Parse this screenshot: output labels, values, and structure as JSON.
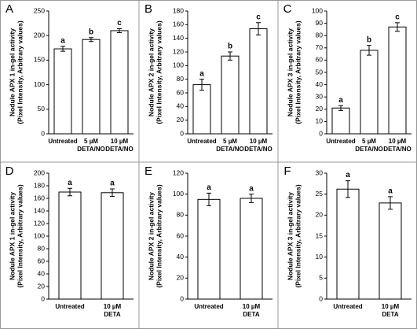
{
  "chart_data": [
    {
      "type": "bar",
      "panel_label": "A",
      "ylabel": [
        "Nodule APX 1 in-gel activity",
        "(Pixel Intensity, Arbitrary values)"
      ],
      "categories": [
        [
          "Untreated"
        ],
        [
          "5 µM",
          "DETA/NO"
        ],
        [
          "10 µM",
          "DETA/NO"
        ]
      ],
      "values": [
        173,
        192,
        210
      ],
      "errors": [
        5,
        4,
        4
      ],
      "annotations": [
        "a",
        "b",
        "c"
      ],
      "ylim": [
        0,
        250
      ],
      "yticks": [
        0,
        50,
        100,
        150,
        200,
        250
      ],
      "color": "#ffffff"
    },
    {
      "type": "bar",
      "panel_label": "B",
      "ylabel": [
        "Nodule APX 2 in-gel activity",
        "(Pixel Intensity, Arbitrary values)"
      ],
      "categories": [
        [
          "Untreated"
        ],
        [
          "5 µM",
          "DETA/NO"
        ],
        [
          "10 µM",
          "DETA/NO"
        ]
      ],
      "values": [
        72,
        114,
        154
      ],
      "errors": [
        8,
        6,
        9
      ],
      "annotations": [
        "a",
        "b",
        "c"
      ],
      "ylim": [
        0,
        180
      ],
      "yticks": [
        0,
        20,
        40,
        60,
        80,
        100,
        120,
        140,
        160,
        180
      ],
      "color": "#ffffff"
    },
    {
      "type": "bar",
      "panel_label": "C",
      "ylabel": [
        "Nodule APX 3 in-gel activity",
        "(Pixel Intensity, Arbitrary values)"
      ],
      "categories": [
        [
          "Untreated"
        ],
        [
          "5 µM",
          "DETA/NO"
        ],
        [
          "10 µM",
          "DETA/NO"
        ]
      ],
      "values": [
        21,
        68,
        87
      ],
      "errors": [
        2,
        4,
        3.5
      ],
      "annotations": [
        "a",
        "b",
        "c"
      ],
      "ylim": [
        0,
        100
      ],
      "yticks": [
        0,
        10,
        20,
        30,
        40,
        50,
        60,
        70,
        80,
        90,
        100
      ],
      "color": "#ffffff"
    },
    {
      "type": "bar",
      "panel_label": "D",
      "ylabel": [
        "Nodule APX 1 in-gel activity",
        "(Pixel Intensity, Arbitrary values)"
      ],
      "categories": [
        [
          "Untreated"
        ],
        [
          "10 µM",
          "DETA"
        ]
      ],
      "values": [
        170,
        169
      ],
      "errors": [
        6,
        6
      ],
      "annotations": [
        "a",
        "a"
      ],
      "ylim": [
        0,
        200
      ],
      "yticks": [
        0,
        20,
        40,
        60,
        80,
        100,
        120,
        140,
        160,
        180,
        200
      ],
      "color": "#ffffff"
    },
    {
      "type": "bar",
      "panel_label": "E",
      "ylabel": [
        "Nodule APX 2 in-gel activity",
        "(Pixel Intensity, Arbitrary values)"
      ],
      "categories": [
        [
          "Untreated"
        ],
        [
          "10 µM",
          "DETA"
        ]
      ],
      "values": [
        95,
        96
      ],
      "errors": [
        6,
        4
      ],
      "annotations": [
        "a",
        "a"
      ],
      "ylim": [
        0,
        120
      ],
      "yticks": [
        0,
        20,
        40,
        60,
        80,
        100,
        120
      ],
      "color": "#ffffff"
    },
    {
      "type": "bar",
      "panel_label": "F",
      "ylabel": [
        "Nodule APX 3 in-gel activity",
        "(Pixel Intensity, Arbitrary values)"
      ],
      "categories": [
        [
          "Untreated"
        ],
        [
          "10 µM",
          "DETA"
        ]
      ],
      "values": [
        26.2,
        22.9
      ],
      "errors": [
        2,
        1.5
      ],
      "annotations": [
        "a",
        "a"
      ],
      "ylim": [
        0,
        30
      ],
      "yticks": [
        0,
        5,
        10,
        15,
        20,
        25,
        30
      ],
      "color": "#ffffff"
    }
  ]
}
